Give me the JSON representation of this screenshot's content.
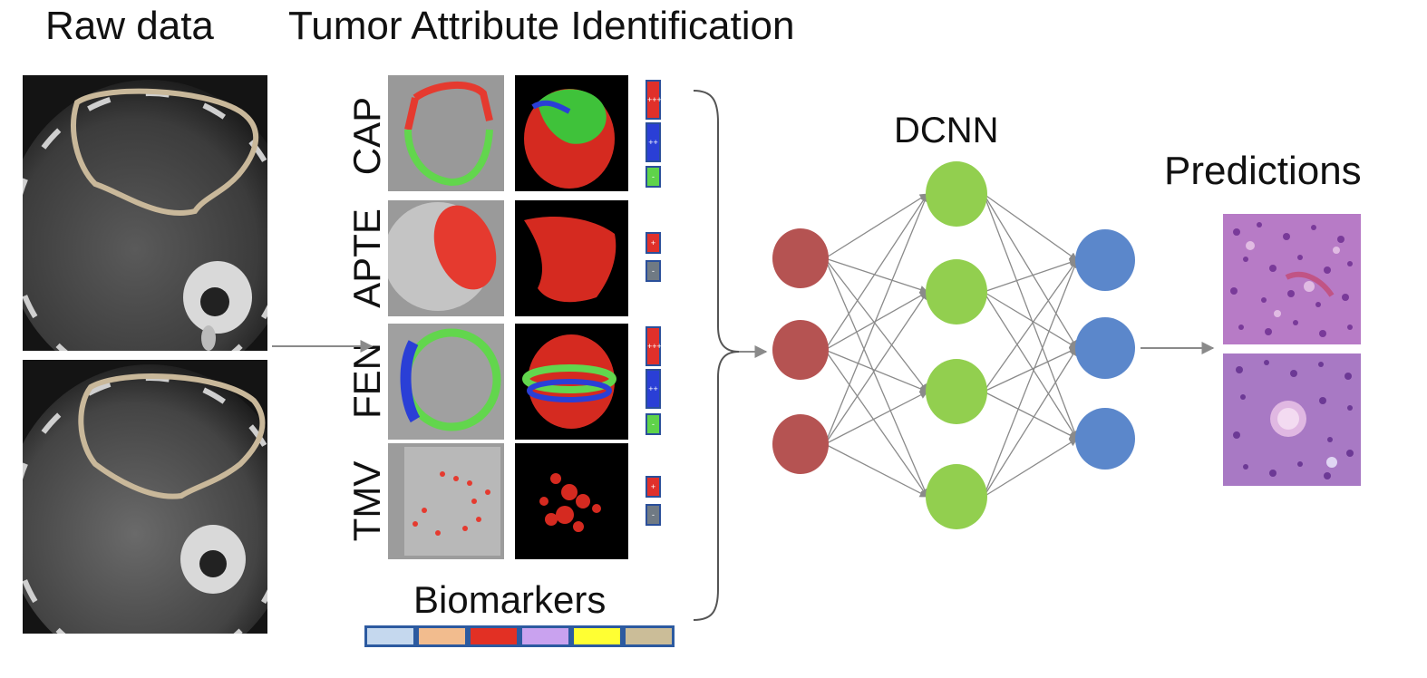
{
  "headings": {
    "raw_data": "Raw data",
    "tumor_attribute": "Tumor Attribute Identification",
    "dcnn": "DCNN",
    "predictions": "Predictions",
    "biomarkers": "Biomarkers"
  },
  "attributes": [
    {
      "label": "CAP",
      "indicators": [
        "+++",
        "++",
        "-"
      ]
    },
    {
      "label": "APTE",
      "indicators": [
        "+",
        "-"
      ]
    },
    {
      "label": "FEN",
      "indicators": [
        "+++",
        "++",
        "-"
      ]
    },
    {
      "label": "TMV",
      "indicators": [
        "+",
        "-"
      ]
    }
  ],
  "indicator_colors": {
    "+++": "#e0302a",
    "++": "#2a3fd6",
    "+": "#e0302a",
    "-": "#5fd34a",
    "neutral": "#707a84"
  },
  "network": {
    "input_nodes": 3,
    "hidden_nodes": 4,
    "output_nodes": 3,
    "input_color": "#b55352",
    "hidden_color": "#92cf4f",
    "output_color": "#5b87cb"
  },
  "biomarker_swatches": [
    "#c5d8ee",
    "#f2bc8e",
    "#e23024",
    "#c9a2ef",
    "#ffff33",
    "#cbbd98"
  ],
  "segmentation_colors": {
    "red": "#e53a2f",
    "green": "#62d64d",
    "blue": "#2a3fd6",
    "contour": "#c9b89a"
  }
}
